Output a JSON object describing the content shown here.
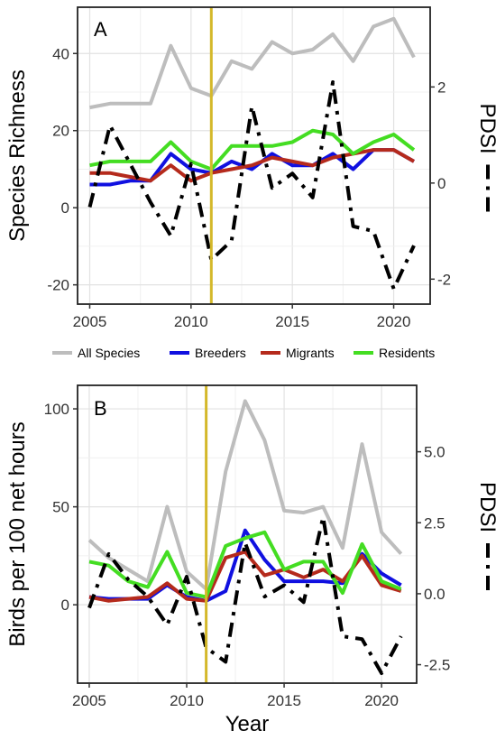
{
  "figure": {
    "legend": {
      "items": [
        {
          "label": "All Species",
          "color": "#bdbdbd"
        },
        {
          "label": "Breeders",
          "color": "#1010e0"
        },
        {
          "label": "Migrants",
          "color": "#b52a1c"
        },
        {
          "label": "Residents",
          "color": "#44dd22"
        }
      ],
      "placement": "between-panels"
    }
  },
  "chart_data": [
    {
      "type": "line",
      "panel_label": "A",
      "ylabel": "Species Richness",
      "y2label": "PDSI",
      "xlabel": "",
      "xlim": [
        2004.4,
        2021.8
      ],
      "ylim": [
        -25,
        52
      ],
      "y2lim": [
        -2.52,
        3.66
      ],
      "x_ticks": [
        2005,
        2010,
        2015,
        2020
      ],
      "y_ticks": [
        -20,
        0,
        20,
        40
      ],
      "y2_ticks": [
        -2,
        0,
        2
      ],
      "grid": true,
      "vline": {
        "x": 2011,
        "color": "#d4b82a"
      },
      "x": [
        2005,
        2006,
        2007,
        2008,
        2009,
        2010,
        2011,
        2012,
        2013,
        2014,
        2015,
        2016,
        2017,
        2018,
        2019,
        2020,
        2021
      ],
      "series": [
        {
          "name": "All Species",
          "color": "#bdbdbd",
          "axis": "left",
          "style": "solid",
          "values": [
            26,
            27,
            27,
            27,
            42,
            31,
            29,
            38,
            36,
            43,
            40,
            41,
            45,
            38,
            47,
            49,
            39
          ]
        },
        {
          "name": "Breeders",
          "color": "#1010e0",
          "axis": "left",
          "style": "solid",
          "values": [
            6,
            6,
            7,
            7,
            14,
            10,
            9,
            12,
            10,
            14,
            11,
            11,
            14,
            10,
            15,
            15,
            12
          ]
        },
        {
          "name": "Migrants",
          "color": "#b52a1c",
          "axis": "left",
          "style": "solid",
          "values": [
            9,
            9,
            8,
            7,
            11,
            7,
            9,
            10,
            11,
            13,
            12,
            11,
            13,
            14,
            15,
            15,
            12
          ]
        },
        {
          "name": "Residents",
          "color": "#44dd22",
          "axis": "left",
          "style": "solid",
          "values": [
            11,
            12,
            12,
            12,
            17,
            12,
            10,
            16,
            16,
            16,
            17,
            20,
            19,
            14,
            17,
            19,
            15
          ]
        },
        {
          "name": "PDSI",
          "color": "#000000",
          "axis": "right",
          "style": "dashdot",
          "values": [
            -0.5,
            1.2,
            0.4,
            -0.4,
            -1.1,
            0.4,
            -1.6,
            -1.2,
            1.6,
            -0.1,
            0.2,
            -0.3,
            2.1,
            -0.9,
            -1.0,
            -2.2,
            -1.3
          ]
        }
      ]
    },
    {
      "type": "line",
      "panel_label": "B",
      "ylabel": "Birds per 100 net hours",
      "y2label": "PDSI",
      "xlabel": "Year",
      "xlim": [
        2004.4,
        2021.8
      ],
      "ylim": [
        -40,
        112
      ],
      "y2lim": [
        -3.15,
        7.34
      ],
      "x_ticks": [
        2005,
        2010,
        2015,
        2020
      ],
      "y_ticks": [
        0,
        50,
        100
      ],
      "y2_ticks": [
        -2.5,
        0.0,
        2.5,
        5.0
      ],
      "y2_tick_labels": [
        "-2.5",
        "0.0",
        "2.5",
        "5.0"
      ],
      "grid": true,
      "vline": {
        "x": 2011,
        "color": "#d4b82a"
      },
      "x": [
        2005,
        2006,
        2007,
        2008,
        2009,
        2010,
        2011,
        2012,
        2013,
        2014,
        2015,
        2016,
        2017,
        2018,
        2019,
        2020,
        2021
      ],
      "series": [
        {
          "name": "All Species",
          "color": "#bdbdbd",
          "axis": "left",
          "style": "solid",
          "values": [
            33,
            24,
            18,
            12,
            50,
            17,
            8,
            68,
            104,
            84,
            48,
            47,
            50,
            29,
            82,
            37,
            26
          ]
        },
        {
          "name": "Breeders",
          "color": "#1010e0",
          "axis": "left",
          "style": "solid",
          "values": [
            4,
            3,
            3,
            3,
            10,
            4,
            2,
            7,
            38,
            23,
            12,
            12,
            12,
            11,
            26,
            16,
            10
          ]
        },
        {
          "name": "Migrants",
          "color": "#b52a1c",
          "axis": "left",
          "style": "solid",
          "values": [
            4,
            2,
            3,
            4,
            11,
            3,
            2,
            24,
            27,
            15,
            18,
            14,
            18,
            12,
            25,
            10,
            7
          ]
        },
        {
          "name": "Residents",
          "color": "#44dd22",
          "axis": "left",
          "style": "solid",
          "values": [
            22,
            20,
            12,
            9,
            27,
            6,
            4,
            30,
            34,
            37,
            18,
            22,
            22,
            6,
            31,
            12,
            8
          ]
        },
        {
          "name": "PDSI",
          "color": "#000000",
          "axis": "right",
          "style": "dashdot",
          "values": [
            -0.5,
            1.4,
            0.5,
            -0.1,
            -1.1,
            0.6,
            -1.9,
            -2.4,
            1.8,
            -0.1,
            0.3,
            -0.3,
            2.7,
            -1.5,
            -1.6,
            -2.8,
            -1.5
          ]
        }
      ]
    }
  ]
}
